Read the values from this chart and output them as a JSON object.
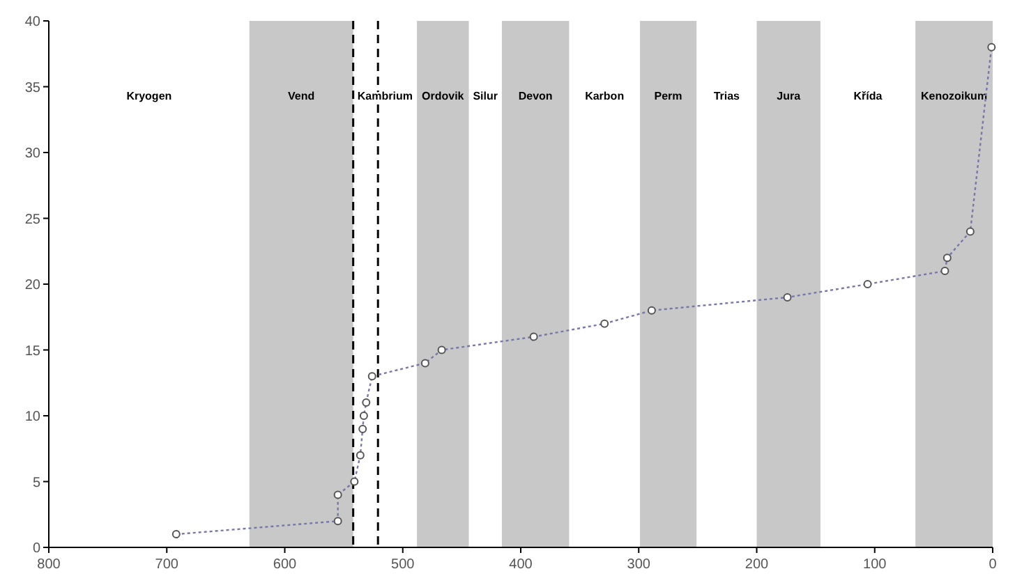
{
  "chart_data": {
    "type": "line",
    "x": [
      692,
      555,
      555,
      541,
      536,
      534,
      533,
      531,
      526,
      481,
      467,
      389,
      329,
      289,
      174,
      106,
      40.5,
      38.5,
      19,
      1
    ],
    "series": [
      {
        "color": "#7777aa",
        "values": [
          1,
          2,
          4,
          5,
          7,
          9,
          10,
          11,
          13,
          14,
          15,
          16,
          17,
          18,
          19,
          20,
          21,
          22,
          24,
          38
        ]
      }
    ],
    "xlim": [
      800,
      0
    ],
    "xticks": [
      800,
      700,
      600,
      500,
      400,
      300,
      200,
      100,
      0
    ],
    "ylim": [
      0,
      40
    ],
    "yticks": [
      0,
      5,
      10,
      15,
      20,
      25,
      30,
      35,
      40
    ],
    "marker": "circle",
    "line_style": "dotted",
    "bands": [
      {
        "axis": "x",
        "from": 630,
        "to": 542,
        "label": "Vend",
        "color": "#c8c8c8"
      },
      {
        "axis": "x",
        "from": 488,
        "to": 444,
        "label": "Ordovik",
        "color": "#c8c8c8"
      },
      {
        "axis": "x",
        "from": 416,
        "to": 359,
        "label": "Devon",
        "color": "#c8c8c8"
      },
      {
        "axis": "x",
        "from": 299,
        "to": 251,
        "label": "Perm",
        "color": "#c8c8c8"
      },
      {
        "axis": "x",
        "from": 200,
        "to": 146,
        "label": "Jura",
        "color": "#c8c8c8"
      },
      {
        "axis": "x",
        "from": 65.5,
        "to": 0,
        "label": "Kenozoikum",
        "color": "#c8c8c8"
      }
    ],
    "annotations": [
      "Kryogen",
      "Kambrium",
      "Silur",
      "Karbon",
      "Trias",
      "Křída"
    ],
    "ref_lines": [
      {
        "axis": "x",
        "value": 542,
        "color": "#000000",
        "line_style": "dashed"
      },
      {
        "axis": "x",
        "value": 521,
        "color": "#000000",
        "line_style": "dashed"
      }
    ]
  }
}
